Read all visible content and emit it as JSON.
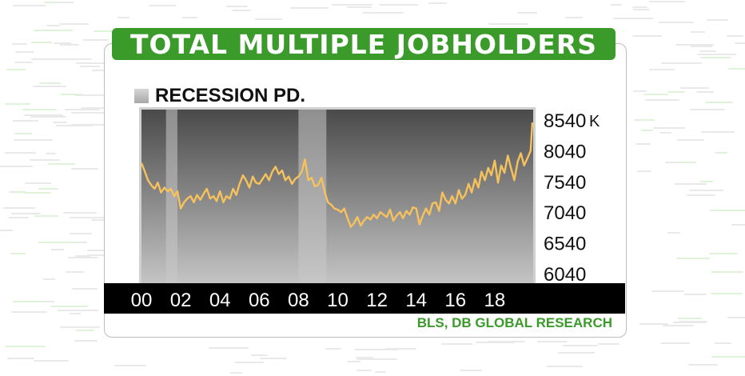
{
  "title": "TOTAL MULTIPLE JOBHOLDERS",
  "legend_label": "RECESSION PD.",
  "source": "BLS, DB GLOBAL RESEARCH",
  "colors": {
    "title_bg": "#3a9a2a",
    "line": "#f7c25c",
    "recession": "#c8c8c8",
    "source_text": "#3a9a2a"
  },
  "chart_data": {
    "type": "line",
    "title": "TOTAL MULTIPLE JOBHOLDERS",
    "unit": "K",
    "x_ticks": [
      "00",
      "02",
      "04",
      "06",
      "08",
      "10",
      "12",
      "14",
      "16",
      "18"
    ],
    "y_ticks": [
      "6040",
      "6540",
      "7040",
      "7540",
      "8040",
      "8540"
    ],
    "xlim": [
      2000.0,
      2019.92
    ],
    "ylim": [
      6040,
      8540
    ],
    "grid": false,
    "legend_position": "top-left",
    "recessions": [
      [
        2001.25,
        2001.83
      ],
      [
        2008.0,
        2009.42
      ]
    ],
    "series": [
      {
        "x": [
          2000.0,
          2000.17,
          2000.33,
          2000.5,
          2000.67,
          2000.83,
          2001.0,
          2001.17,
          2001.33,
          2001.5,
          2001.67,
          2001.83,
          2002.0,
          2002.17,
          2002.33,
          2002.5,
          2002.67,
          2002.83,
          2003.0,
          2003.17,
          2003.33,
          2003.5,
          2003.67,
          2003.83,
          2004.0,
          2004.17,
          2004.33,
          2004.5,
          2004.67,
          2004.83,
          2005.0,
          2005.17,
          2005.33,
          2005.5,
          2005.67,
          2005.83,
          2006.0,
          2006.17,
          2006.33,
          2006.5,
          2006.67,
          2006.83,
          2007.0,
          2007.17,
          2007.33,
          2007.5,
          2007.67,
          2007.83,
          2008.0,
          2008.17,
          2008.33,
          2008.5,
          2008.67,
          2008.83,
          2009.0,
          2009.17,
          2009.33,
          2009.5,
          2009.67,
          2009.83,
          2010.0,
          2010.17,
          2010.33,
          2010.5,
          2010.67,
          2010.83,
          2011.0,
          2011.17,
          2011.33,
          2011.5,
          2011.67,
          2011.83,
          2012.0,
          2012.17,
          2012.33,
          2012.5,
          2012.67,
          2012.83,
          2013.0,
          2013.17,
          2013.33,
          2013.5,
          2013.67,
          2013.83,
          2014.0,
          2014.17,
          2014.33,
          2014.5,
          2014.67,
          2014.83,
          2015.0,
          2015.17,
          2015.33,
          2015.5,
          2015.67,
          2015.83,
          2016.0,
          2016.17,
          2016.33,
          2016.5,
          2016.67,
          2016.83,
          2017.0,
          2017.17,
          2017.33,
          2017.5,
          2017.67,
          2017.83,
          2018.0,
          2018.17,
          2018.33,
          2018.5,
          2018.67,
          2018.83,
          2019.0,
          2019.17,
          2019.33,
          2019.5,
          2019.67,
          2019.83,
          2019.92
        ],
        "values": [
          7840,
          7700,
          7560,
          7480,
          7420,
          7520,
          7360,
          7440,
          7380,
          7420,
          7300,
          7380,
          7100,
          7200,
          7260,
          7300,
          7200,
          7320,
          7240,
          7340,
          7420,
          7260,
          7300,
          7220,
          7380,
          7200,
          7300,
          7260,
          7420,
          7320,
          7500,
          7640,
          7560,
          7440,
          7620,
          7520,
          7500,
          7580,
          7660,
          7560,
          7700,
          7780,
          7660,
          7720,
          7560,
          7620,
          7500,
          7580,
          7620,
          7700,
          7900,
          7560,
          7600,
          7460,
          7480,
          7600,
          7380,
          7200,
          7160,
          7100,
          7080,
          7040,
          7100,
          6940,
          6800,
          6860,
          6960,
          6820,
          6900,
          6960,
          6920,
          7000,
          6940,
          7040,
          7000,
          6960,
          7080,
          6900,
          6980,
          7040,
          6940,
          7060,
          7000,
          7120,
          7100,
          6840,
          6980,
          7100,
          7000,
          7180,
          7200,
          7060,
          7360,
          7240,
          7180,
          7300,
          7180,
          7400,
          7260,
          7320,
          7500,
          7360,
          7580,
          7440,
          7700,
          7560,
          7760,
          7640,
          7880,
          7520,
          7800,
          7680,
          7960,
          7760,
          7560,
          7860,
          8000,
          7800,
          7920,
          8040,
          8500
        ]
      }
    ]
  }
}
